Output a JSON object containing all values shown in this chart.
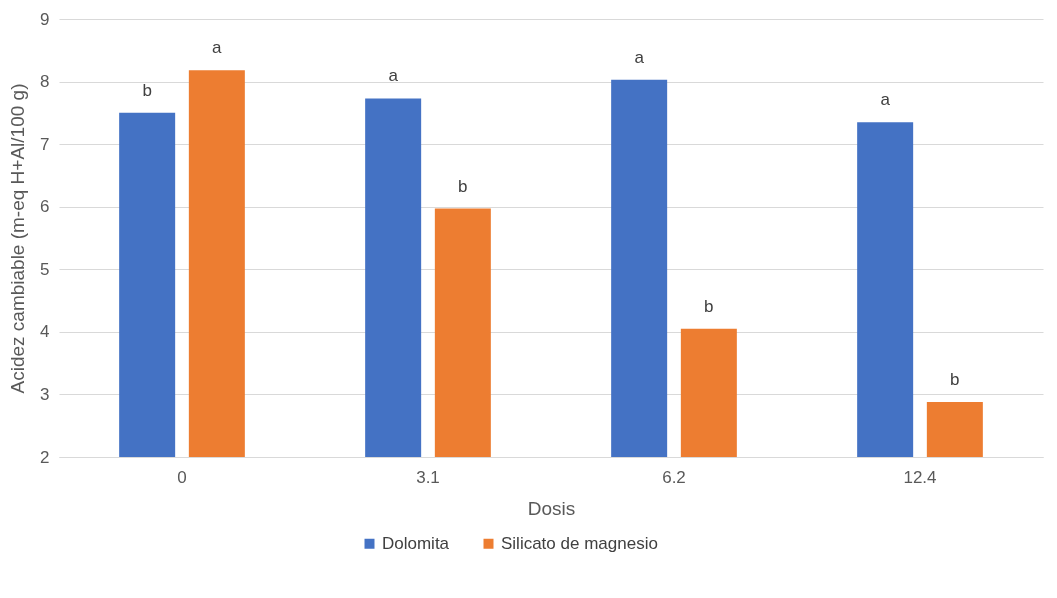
{
  "chart_data": {
    "type": "bar",
    "xlabel": "Dosis",
    "ylabel": "Acidez cambiable (m-eq H+Al/100 g)",
    "categories": [
      "0",
      "3.1",
      "6.2",
      "12.4"
    ],
    "series": [
      {
        "name": "Dolomita",
        "color": "#4472c4",
        "values": [
          7.5,
          7.73,
          8.03,
          7.35
        ],
        "value_labels": [
          "b",
          "a",
          "a",
          "a"
        ]
      },
      {
        "name": "Silicato de magnesio",
        "color": "#ed7d31",
        "values": [
          8.18,
          5.97,
          4.05,
          2.88
        ],
        "value_labels": [
          "a",
          "b",
          "b",
          "b"
        ]
      }
    ],
    "ylim": [
      2,
      9
    ],
    "yticks": [
      2,
      3,
      4,
      5,
      6,
      7,
      8,
      9
    ],
    "grid": "y",
    "legend": "bottom"
  }
}
